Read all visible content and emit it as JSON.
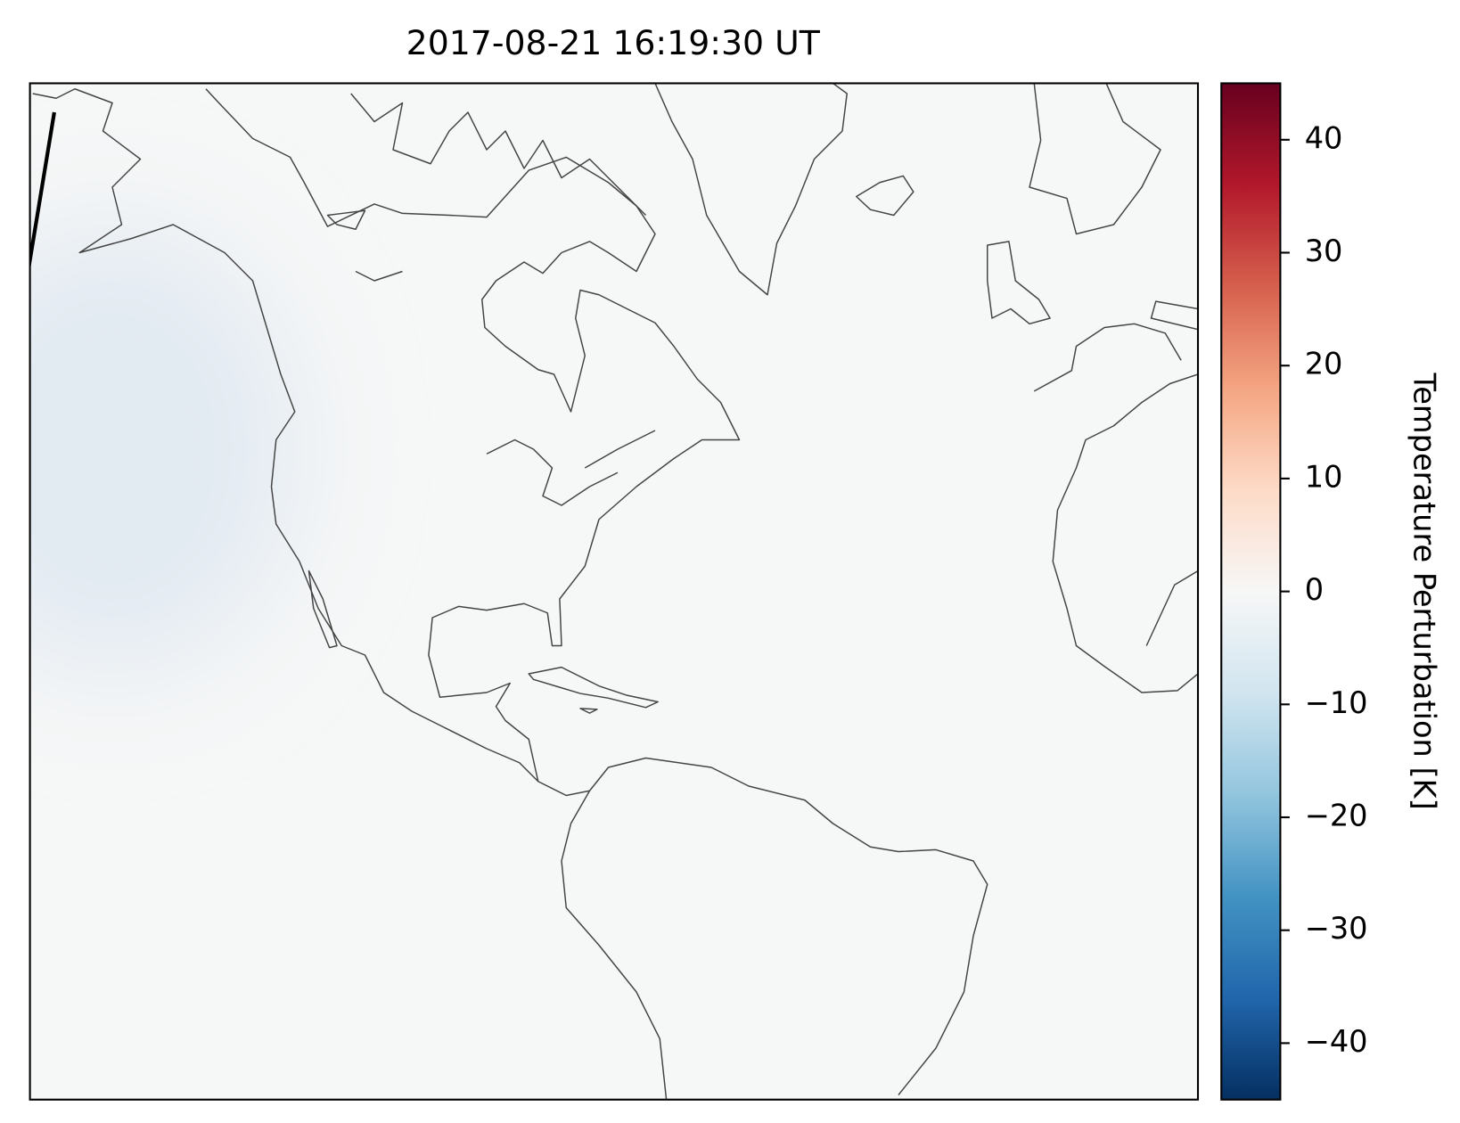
{
  "title": "2017-08-21 16:19:30 UT",
  "colorbar": {
    "label": "Temperature Perturbation [K]",
    "lim": [
      -45,
      45
    ],
    "ticks": [
      40,
      30,
      20,
      10,
      0,
      {
        "value": -10,
        "label": "−10"
      },
      {
        "value": -20,
        "label": "−20"
      },
      {
        "value": -30,
        "label": "−30"
      },
      {
        "value": -40,
        "label": "−40"
      }
    ],
    "colors": [
      "#053061",
      "#2166ac",
      "#4393c3",
      "#92c5de",
      "#d1e5f0",
      "#f7f7f7",
      "#fddbc7",
      "#f4a582",
      "#d6604d",
      "#b2182b",
      "#67001f"
    ]
  }
}
